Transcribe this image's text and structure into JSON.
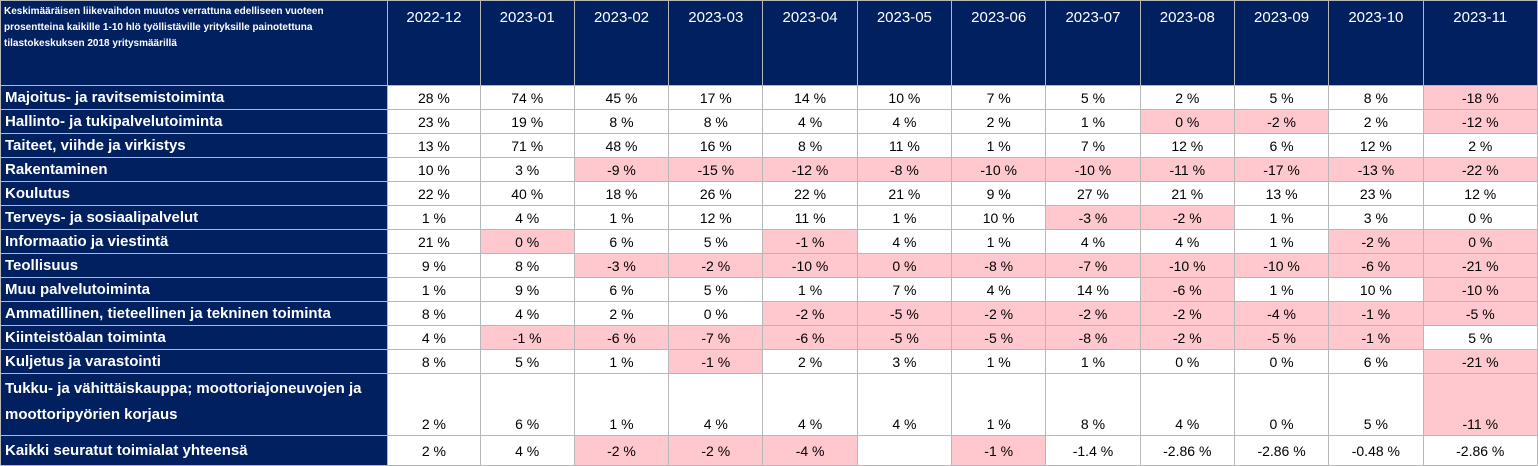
{
  "table": {
    "title": "Keskimääräisen liikevaihdon muutos verrattuna edelliseen vuoteen prosentteina kaikille  1-10 hlö työllistäville yrityksille painotettuna tilastokeskuksen 2018 yritysmäärillä",
    "columns": [
      "2022-12",
      "2023-01",
      "2023-02",
      "2023-03",
      "2023-04",
      "2023-05",
      "2023-06",
      "2023-07",
      "2023-08",
      "2023-09",
      "2023-10",
      "2023-11"
    ],
    "highlight_color": "#ffc7ce",
    "header_color": "#002060",
    "rows": [
      {
        "label": "Majoitus- ja ravitsemistoiminta",
        "values": [
          "28 %",
          "74 %",
          "45 %",
          "17 %",
          "14 %",
          "10 %",
          "7 %",
          "5 %",
          "2 %",
          "5 %",
          "8 %",
          "-18 %"
        ],
        "highlight": [
          false,
          false,
          false,
          false,
          false,
          false,
          false,
          false,
          false,
          false,
          false,
          true
        ]
      },
      {
        "label": "Hallinto- ja tukipalvelutoiminta",
        "values": [
          "23 %",
          "19 %",
          "8 %",
          "8 %",
          "4 %",
          "4 %",
          "2 %",
          "1 %",
          "0 %",
          "-2 %",
          "2 %",
          "-12 %"
        ],
        "highlight": [
          false,
          false,
          false,
          false,
          false,
          false,
          false,
          false,
          true,
          true,
          false,
          true
        ]
      },
      {
        "label": "Taiteet, viihde ja virkistys",
        "values": [
          "13 %",
          "71 %",
          "48 %",
          "16 %",
          "8 %",
          "11 %",
          "1 %",
          "7 %",
          "12 %",
          "6 %",
          "12 %",
          "2 %"
        ],
        "highlight": [
          false,
          false,
          false,
          false,
          false,
          false,
          false,
          false,
          false,
          false,
          false,
          false
        ]
      },
      {
        "label": "Rakentaminen",
        "values": [
          "10 %",
          "3 %",
          "-9 %",
          "-15 %",
          "-12 %",
          "-8 %",
          "-10 %",
          "-10 %",
          "-11 %",
          "-17 %",
          "-13 %",
          "-22 %"
        ],
        "highlight": [
          false,
          false,
          true,
          true,
          true,
          true,
          true,
          true,
          true,
          true,
          true,
          true
        ]
      },
      {
        "label": "Koulutus",
        "values": [
          "22 %",
          "40 %",
          "18 %",
          "26 %",
          "22 %",
          "21 %",
          "9 %",
          "27 %",
          "21 %",
          "13 %",
          "23 %",
          "12 %"
        ],
        "highlight": [
          false,
          false,
          false,
          false,
          false,
          false,
          false,
          false,
          false,
          false,
          false,
          false
        ]
      },
      {
        "label": "Terveys- ja sosiaalipalvelut",
        "values": [
          "1 %",
          "4 %",
          "1 %",
          "12 %",
          "11 %",
          "1 %",
          "10 %",
          "-3 %",
          "-2 %",
          "1 %",
          "3 %",
          "0 %"
        ],
        "highlight": [
          false,
          false,
          false,
          false,
          false,
          false,
          false,
          true,
          true,
          false,
          false,
          false
        ]
      },
      {
        "label": "Informaatio ja viestintä",
        "values": [
          "21 %",
          "0 %",
          "6 %",
          "5 %",
          "-1 %",
          "4 %",
          "1 %",
          "4 %",
          "4 %",
          "1 %",
          "-2 %",
          "0 %"
        ],
        "highlight": [
          false,
          true,
          false,
          false,
          true,
          false,
          false,
          false,
          false,
          false,
          true,
          true
        ]
      },
      {
        "label": "Teollisuus",
        "values": [
          "9 %",
          "8 %",
          "-3 %",
          "-2 %",
          "-10 %",
          "0 %",
          "-8 %",
          "-7 %",
          "-10 %",
          "-10 %",
          "-6 %",
          "-21 %"
        ],
        "highlight": [
          false,
          false,
          true,
          true,
          true,
          true,
          true,
          true,
          true,
          true,
          true,
          true
        ]
      },
      {
        "label": "Muu palvelutoiminta",
        "values": [
          "1 %",
          "9 %",
          "6 %",
          "5 %",
          "1 %",
          "7 %",
          "4 %",
          "14 %",
          "-6 %",
          "1 %",
          "10 %",
          "-10 %"
        ],
        "highlight": [
          false,
          false,
          false,
          false,
          false,
          false,
          false,
          false,
          true,
          false,
          false,
          true
        ]
      },
      {
        "label": "Ammatillinen, tieteellinen ja tekninen toiminta",
        "values": [
          "8 %",
          "4 %",
          "2 %",
          "0 %",
          "-2 %",
          "-5 %",
          "-2 %",
          "-2 %",
          "-2 %",
          "-4 %",
          "-1 %",
          "-5 %"
        ],
        "highlight": [
          false,
          false,
          false,
          false,
          true,
          true,
          true,
          true,
          true,
          true,
          true,
          true
        ]
      },
      {
        "label": "Kiinteistöalan toiminta",
        "values": [
          "4 %",
          "-1 %",
          "-6 %",
          "-7 %",
          "-6 %",
          "-5 %",
          "-5 %",
          "-8 %",
          "-2 %",
          "-5 %",
          "-1 %",
          "5 %"
        ],
        "highlight": [
          false,
          true,
          true,
          true,
          true,
          true,
          true,
          true,
          true,
          true,
          true,
          false
        ]
      },
      {
        "label": "Kuljetus ja varastointi",
        "values": [
          "8 %",
          "5 %",
          "1 %",
          "-1 %",
          "2 %",
          "3 %",
          "1 %",
          "1 %",
          "0 %",
          "0 %",
          "6 %",
          "-21 %"
        ],
        "highlight": [
          false,
          false,
          false,
          true,
          false,
          false,
          false,
          false,
          false,
          false,
          false,
          true
        ]
      },
      {
        "label": "Tukku- ja vähittäiskauppa; moottoriajoneuvojen ja moottoripyörien korjaus",
        "values": [
          "2 %",
          "6 %",
          "1 %",
          "4 %",
          "4 %",
          "4 %",
          "1 %",
          "8 %",
          "4 %",
          "0 %",
          "5 %",
          "-11 %"
        ],
        "highlight": [
          false,
          false,
          false,
          false,
          false,
          false,
          false,
          false,
          false,
          false,
          false,
          true
        ]
      },
      {
        "label": "Kaikki seuratut toimialat yhteensä",
        "values": [
          "2 %",
          "4 %",
          "-2 %",
          "-2 %",
          "-4 %",
          "",
          "-1 %",
          "-1.4 %",
          "-2.86 %",
          "-2.86 %",
          "-0.48 %",
          "-2.86 %"
        ],
        "highlight": [
          false,
          false,
          true,
          true,
          true,
          false,
          true,
          false,
          false,
          false,
          false,
          false
        ]
      }
    ]
  }
}
